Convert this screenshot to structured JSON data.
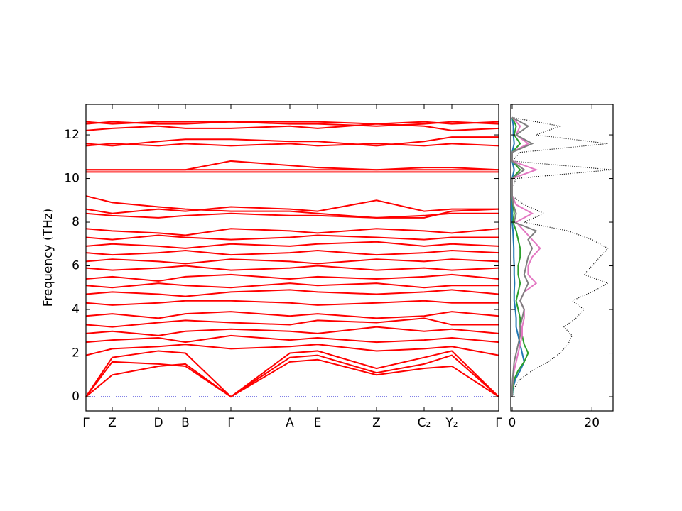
{
  "chart_data": [
    {
      "type": "line",
      "y_label": "Frequency (THz)",
      "x": [
        0,
        0.37,
        1.02,
        1.4,
        2.04,
        2.87,
        3.26,
        4.09,
        4.76,
        5.15,
        5.81
      ],
      "xlim": [
        0,
        5.81
      ],
      "xticks": [
        {
          "value": 0,
          "label": "Γ"
        },
        {
          "value": 0.37,
          "label": "Z"
        },
        {
          "value": 1.02,
          "label": "D"
        },
        {
          "value": 1.4,
          "label": "B"
        },
        {
          "value": 2.04,
          "label": "Γ"
        },
        {
          "value": 2.87,
          "label": "A"
        },
        {
          "value": 3.26,
          "label": "E"
        },
        {
          "value": 4.09,
          "label": "Z"
        },
        {
          "value": 4.76,
          "label": "C₂"
        },
        {
          "value": 5.15,
          "label": "Y₂"
        },
        {
          "value": 5.81,
          "label": "Γ"
        }
      ],
      "ylim": [
        -0.65,
        13.4
      ],
      "yticks": [
        0,
        2,
        4,
        6,
        8,
        10,
        12
      ],
      "hline": {
        "value": 0,
        "color": "#0000cc"
      },
      "color": "#ff0000",
      "series": [
        {
          "values": [
            0,
            1.0,
            1.4,
            1.5,
            0,
            1.6,
            1.7,
            1.0,
            1.3,
            1.4,
            0
          ]
        },
        {
          "values": [
            0,
            1.6,
            1.5,
            1.4,
            0,
            1.8,
            1.9,
            1.1,
            1.5,
            1.9,
            0
          ]
        },
        {
          "values": [
            0,
            1.8,
            2.1,
            2.0,
            0,
            2.0,
            2.1,
            1.3,
            1.8,
            2.1,
            0
          ]
        },
        {
          "values": [
            1.9,
            2.2,
            2.3,
            2.4,
            2.2,
            2.3,
            2.4,
            2.1,
            2.2,
            2.3,
            1.9
          ]
        },
        {
          "values": [
            2.5,
            2.6,
            2.7,
            2.5,
            2.8,
            2.6,
            2.7,
            2.5,
            2.6,
            2.7,
            2.5
          ]
        },
        {
          "values": [
            2.9,
            3.0,
            2.8,
            3.0,
            3.1,
            3.0,
            2.9,
            3.2,
            3.0,
            3.1,
            2.9
          ]
        },
        {
          "values": [
            3.3,
            3.2,
            3.4,
            3.5,
            3.4,
            3.3,
            3.5,
            3.4,
            3.6,
            3.3,
            3.3
          ]
        },
        {
          "values": [
            3.7,
            3.8,
            3.6,
            3.8,
            3.9,
            3.7,
            3.8,
            3.6,
            3.7,
            3.9,
            3.7
          ]
        },
        {
          "values": [
            4.3,
            4.2,
            4.3,
            4.4,
            4.4,
            4.3,
            4.2,
            4.3,
            4.4,
            4.3,
            4.3
          ]
        },
        {
          "values": [
            4.7,
            4.8,
            4.7,
            4.6,
            4.8,
            4.9,
            4.8,
            4.7,
            4.8,
            4.9,
            4.7
          ]
        },
        {
          "values": [
            5.1,
            5.0,
            5.2,
            5.1,
            5.0,
            5.2,
            5.1,
            5.2,
            5.0,
            5.1,
            5.1
          ]
        },
        {
          "values": [
            5.4,
            5.5,
            5.3,
            5.5,
            5.6,
            5.4,
            5.5,
            5.4,
            5.5,
            5.6,
            5.4
          ]
        },
        {
          "values": [
            5.9,
            5.8,
            5.9,
            6.0,
            5.8,
            5.9,
            6.0,
            5.8,
            5.9,
            5.8,
            5.9
          ]
        },
        {
          "values": [
            6.2,
            6.3,
            6.2,
            6.1,
            6.3,
            6.2,
            6.1,
            6.3,
            6.2,
            6.3,
            6.2
          ]
        },
        {
          "values": [
            6.6,
            6.5,
            6.6,
            6.7,
            6.5,
            6.6,
            6.7,
            6.5,
            6.6,
            6.7,
            6.6
          ]
        },
        {
          "values": [
            6.9,
            7.0,
            6.9,
            6.8,
            7.0,
            6.9,
            7.0,
            7.1,
            6.9,
            7.0,
            6.9
          ]
        },
        {
          "values": [
            7.3,
            7.2,
            7.4,
            7.3,
            7.2,
            7.3,
            7.4,
            7.3,
            7.2,
            7.3,
            7.3
          ]
        },
        {
          "values": [
            7.7,
            7.6,
            7.5,
            7.4,
            7.7,
            7.6,
            7.5,
            7.7,
            7.6,
            7.5,
            7.7
          ]
        },
        {
          "values": [
            8.4,
            8.3,
            8.2,
            8.3,
            8.4,
            8.3,
            8.3,
            8.2,
            8.3,
            8.4,
            8.4
          ]
        },
        {
          "values": [
            8.6,
            8.4,
            8.6,
            8.5,
            8.7,
            8.6,
            8.5,
            9.0,
            8.5,
            8.6,
            8.6
          ]
        },
        {
          "values": [
            9.2,
            8.9,
            8.7,
            8.6,
            8.5,
            8.5,
            8.4,
            8.2,
            8.2,
            8.5,
            8.6
          ]
        },
        {
          "values": [
            10.3,
            10.3,
            10.3,
            10.3,
            10.3,
            10.3,
            10.3,
            10.3,
            10.3,
            10.3,
            10.3
          ]
        },
        {
          "values": [
            10.4,
            10.4,
            10.4,
            10.4,
            10.4,
            10.4,
            10.4,
            10.4,
            10.5,
            10.5,
            10.4
          ]
        },
        {
          "values": [
            10.4,
            10.4,
            10.4,
            10.4,
            10.8,
            10.6,
            10.5,
            10.4,
            10.4,
            10.4,
            10.4
          ]
        },
        {
          "values": [
            11.5,
            11.6,
            11.5,
            11.6,
            11.5,
            11.6,
            11.5,
            11.6,
            11.5,
            11.6,
            11.5
          ]
        },
        {
          "values": [
            11.6,
            11.5,
            11.7,
            11.8,
            11.8,
            11.7,
            11.7,
            11.5,
            11.7,
            11.9,
            11.9
          ]
        },
        {
          "values": [
            12.2,
            12.3,
            12.4,
            12.3,
            12.3,
            12.4,
            12.3,
            12.5,
            12.4,
            12.2,
            12.3
          ]
        },
        {
          "values": [
            12.5,
            12.6,
            12.5,
            12.5,
            12.6,
            12.5,
            12.5,
            12.4,
            12.5,
            12.6,
            12.5
          ]
        },
        {
          "values": [
            12.6,
            12.5,
            12.6,
            12.6,
            12.6,
            12.6,
            12.6,
            12.5,
            12.6,
            12.5,
            12.6
          ]
        }
      ]
    },
    {
      "type": "line",
      "orientation": "horizontal",
      "y": [
        0,
        0.4,
        0.8,
        1.2,
        1.6,
        2.0,
        2.4,
        2.8,
        3.2,
        3.6,
        4.0,
        4.4,
        4.8,
        5.2,
        5.6,
        6.0,
        6.4,
        6.8,
        7.2,
        7.6,
        8.0,
        8.4,
        8.8,
        9.2,
        9.6,
        10.0,
        10.4,
        10.8,
        11.2,
        11.6,
        12.0,
        12.4,
        12.8
      ],
      "xlim": [
        -0.35,
        25.3
      ],
      "xticks": [
        0,
        20
      ],
      "ylim": [
        -0.65,
        13.4
      ],
      "yticks": [
        0,
        2,
        4,
        6,
        8,
        10,
        12
      ],
      "series": [
        {
          "color": "#000000",
          "dotted": true,
          "values": [
            0,
            0.5,
            2,
            5,
            9,
            12,
            14,
            15,
            13,
            16,
            18,
            15,
            20,
            24,
            18,
            20,
            22,
            24,
            20,
            14,
            3,
            8,
            3,
            0,
            0,
            1,
            25,
            0,
            2,
            24,
            6,
            12,
            0
          ]
        },
        {
          "color": "#1f77b4",
          "values": [
            0,
            0.2,
            0.8,
            2,
            3,
            2.5,
            2,
            1.5,
            1,
            1,
            0.8,
            0.5,
            0.5,
            0.6,
            0.5,
            0.5,
            0.4,
            0.4,
            0.3,
            0.2,
            0,
            0,
            0,
            0,
            0,
            0,
            0.5,
            0,
            0,
            0.5,
            0.3,
            0.3,
            0
          ]
        },
        {
          "color": "#2ca02c",
          "values": [
            0,
            0.1,
            0.5,
            1.5,
            3,
            4,
            3,
            2.5,
            2,
            2,
            1.5,
            1,
            1.5,
            2,
            1.5,
            1.5,
            2,
            2,
            1.5,
            1,
            0.2,
            0.5,
            0.2,
            0,
            0,
            0,
            2,
            0,
            0,
            2,
            0.5,
            1,
            0
          ]
        },
        {
          "color": "#e377c2",
          "values": [
            0,
            0,
            0.2,
            0.5,
            1,
            1.5,
            2,
            2.5,
            2.5,
            3,
            3,
            2,
            3,
            6,
            4,
            4,
            5,
            7,
            5,
            3,
            1,
            5,
            1,
            0,
            0,
            0,
            6,
            0,
            0,
            4,
            1,
            2,
            0
          ]
        },
        {
          "color": "#7f7f7f",
          "values": [
            0,
            0,
            0.1,
            0.3,
            0.5,
            1,
            1.5,
            2,
            2,
            2.5,
            3,
            2,
            3,
            4,
            3,
            3.5,
            4,
            5,
            4,
            6,
            0.5,
            1,
            0.3,
            0,
            0,
            0,
            3,
            0,
            0,
            5,
            1,
            4,
            0
          ]
        }
      ]
    }
  ]
}
